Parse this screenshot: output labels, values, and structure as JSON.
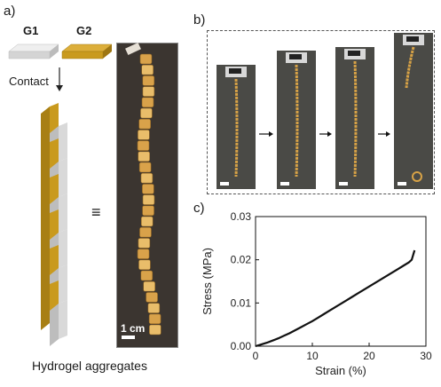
{
  "panels": {
    "a": "a)",
    "b": "b)",
    "c": "c)"
  },
  "labels": {
    "g1": "G1",
    "g2": "G2",
    "contact": "Contact",
    "equals": "≡",
    "scale": "1 cm",
    "caption": "Hydrogel aggregates"
  },
  "colors": {
    "g1": "#d9d9d9",
    "g2": "#c99a1e",
    "photo_bg": "#3b3530",
    "line": "#111111"
  },
  "chart_data": {
    "type": "line",
    "xlabel": "Strain (%)",
    "ylabel": "Stress (MPa)",
    "xlim": [
      0,
      30
    ],
    "ylim": [
      0,
      0.03
    ],
    "xticks": [
      "0",
      "10",
      "20",
      "30"
    ],
    "yticks": [
      "0.00",
      "0.01",
      "0.02",
      "0.03"
    ],
    "series": [
      {
        "x": [
          0,
          1,
          2,
          3,
          4,
          5,
          6,
          7,
          8,
          9,
          10,
          11,
          12,
          13,
          14,
          15,
          16,
          17,
          18,
          19,
          20,
          21,
          22,
          23,
          24,
          25,
          26,
          27,
          27.5,
          28
        ],
        "y": [
          0.0,
          0.0004,
          0.0008,
          0.0013,
          0.0018,
          0.0024,
          0.003,
          0.0037,
          0.0044,
          0.0051,
          0.0058,
          0.0066,
          0.0074,
          0.0082,
          0.009,
          0.0098,
          0.0106,
          0.0114,
          0.0122,
          0.013,
          0.0138,
          0.0146,
          0.0154,
          0.0162,
          0.017,
          0.0178,
          0.0186,
          0.0194,
          0.02,
          0.0222
        ]
      }
    ],
    "grid": false
  }
}
